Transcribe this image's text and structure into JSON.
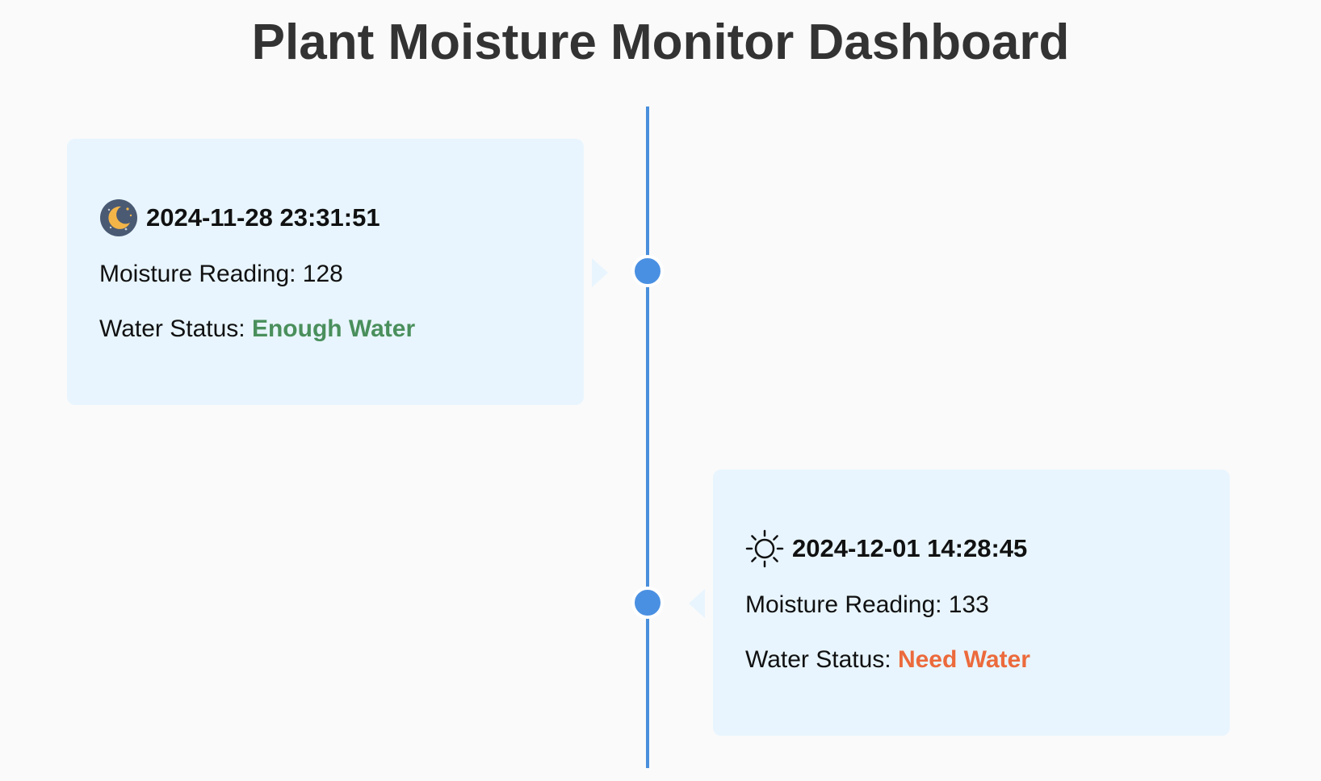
{
  "page": {
    "title": "Plant Moisture Monitor Dashboard"
  },
  "entries": [
    {
      "icon": "moon-icon",
      "timestamp": "2024-11-28 23:31:51",
      "moisture_label": "Moisture Reading: ",
      "moisture_value": "128",
      "status_label": "Water Status: ",
      "status_value": "Enough Water",
      "status_color": "#4a8f5c"
    },
    {
      "icon": "sun-icon",
      "timestamp": "2024-12-01 14:28:45",
      "moisture_label": "Moisture Reading: ",
      "moisture_value": "133",
      "status_label": "Water Status: ",
      "status_value": "Need Water",
      "status_color": "#ec6a3c"
    }
  ],
  "colors": {
    "timeline": "#4a90e2",
    "card_background": "#e8f5fe",
    "page_background": "#fafafa"
  }
}
